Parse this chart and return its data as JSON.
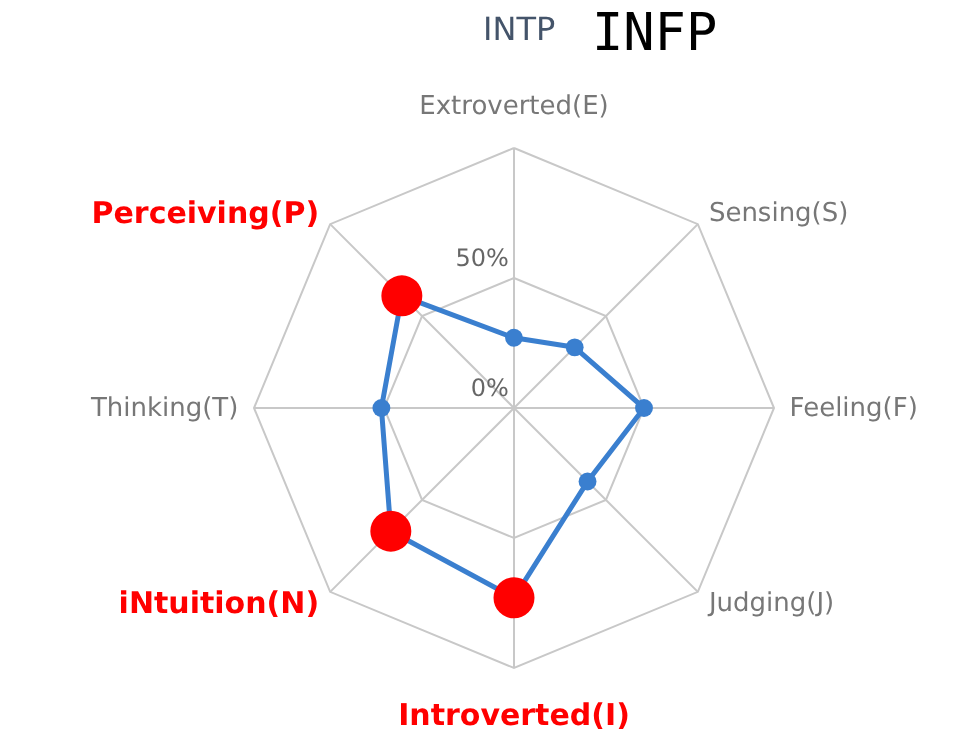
{
  "chart_data": {
    "type": "radar",
    "title": "INTP",
    "subtitle": "INFP",
    "categories": [
      "Extroverted(E)",
      "Sensing(S)",
      "Feeling(F)",
      "Judging(J)",
      "Introverted(I)",
      "iNtuition(N)",
      "Thinking(T)",
      "Perceiving(P)"
    ],
    "series": [
      {
        "color": "#3a7fcf",
        "values": [
          27,
          33,
          50,
          40,
          73,
          67,
          51,
          61
        ],
        "colors": [
          "#3a7fcf",
          "#3a7fcf",
          "#3a7fcf",
          "#3a7fcf",
          "#ff0000",
          "#ff0000",
          "#3a7fcf",
          "#ff0000"
        ]
      }
    ],
    "ylim": [
      0,
      100
    ],
    "yticks": [
      {
        "value": 0,
        "label": "0%"
      },
      {
        "value": 50,
        "label": "50%"
      }
    ],
    "grid": true,
    "marker": "circle",
    "line_style": "solid"
  }
}
